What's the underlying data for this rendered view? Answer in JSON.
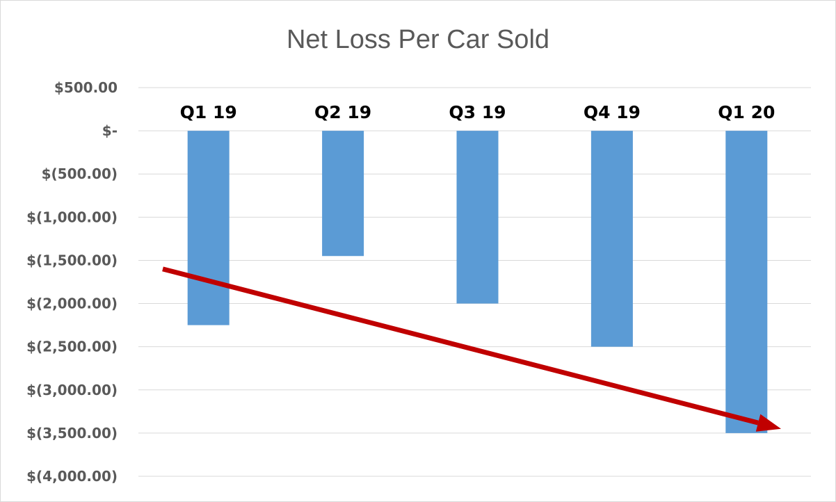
{
  "chart_data": {
    "type": "bar",
    "title": "Net Loss Per Car Sold",
    "categories": [
      "Q1 19",
      "Q2 19",
      "Q3 19",
      "Q4 19",
      "Q1 20"
    ],
    "values": [
      -2250,
      -1450,
      -2000,
      -2500,
      -3500
    ],
    "ylim": [
      -4000,
      500
    ],
    "y_ticks": [
      500,
      0,
      -500,
      -1000,
      -1500,
      -2000,
      -2500,
      -3000,
      -3500,
      -4000
    ],
    "y_tick_labels": [
      "$500.00",
      "$-",
      "$(500.00)",
      "$(1,000.00)",
      "$(1,500.00)",
      "$(2,000.00)",
      "$(2,500.00)",
      "$(3,000.00)",
      "$(3,500.00)",
      "$(4,000.00)"
    ],
    "category_label_position": "top",
    "grid": true,
    "legend": "none",
    "bar_color": "#5b9bd5",
    "trend_arrow": {
      "color": "#c00000",
      "start_value": -1600,
      "end_value": -3450
    }
  }
}
